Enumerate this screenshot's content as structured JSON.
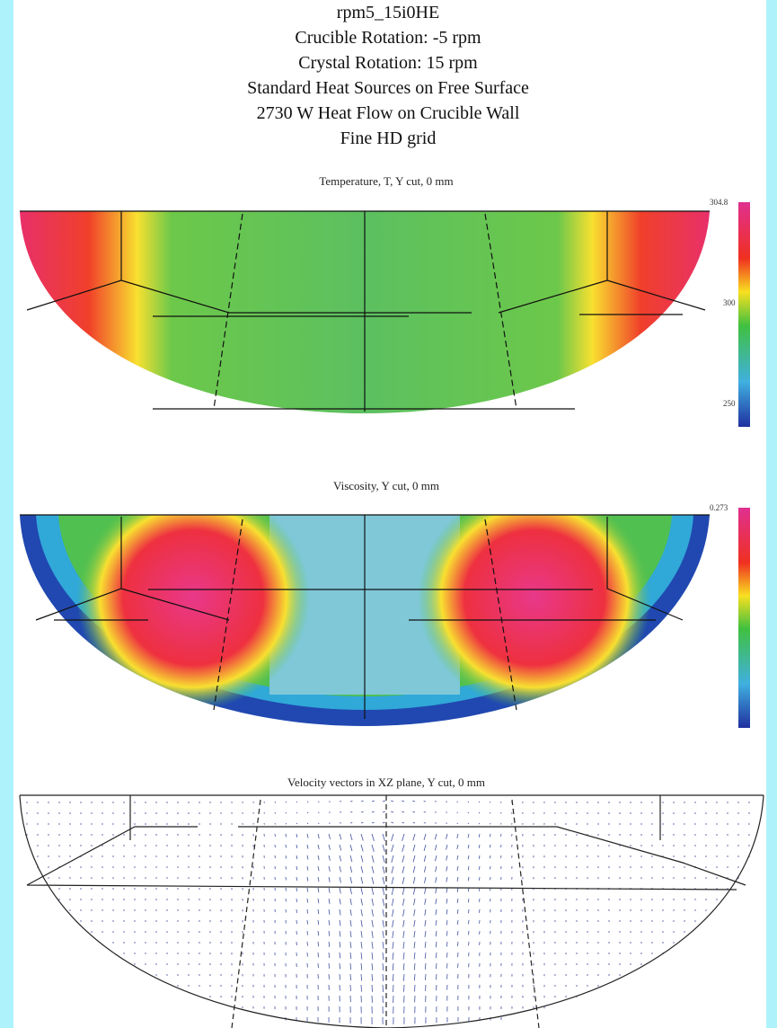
{
  "header": {
    "lines": [
      "rpm5_15i0HE",
      "Crucible Rotation:  -5 rpm",
      "Crystal Rotation: 15 rpm",
      "Standard Heat Sources on Free Surface",
      "2730 W Heat Flow on Crucible Wall",
      "Fine HD grid"
    ]
  },
  "panels": [
    {
      "title": "Temperature, T, Y cut, 0 mm",
      "scale_labels": [
        "304.8",
        "300",
        "250"
      ]
    },
    {
      "title": "Viscosity, Y cut, 0 mm",
      "scale_labels": [
        "0.273"
      ]
    },
    {
      "title": "Velocity vectors in XZ plane, Y cut, 0 mm",
      "scale_labels": []
    }
  ]
}
